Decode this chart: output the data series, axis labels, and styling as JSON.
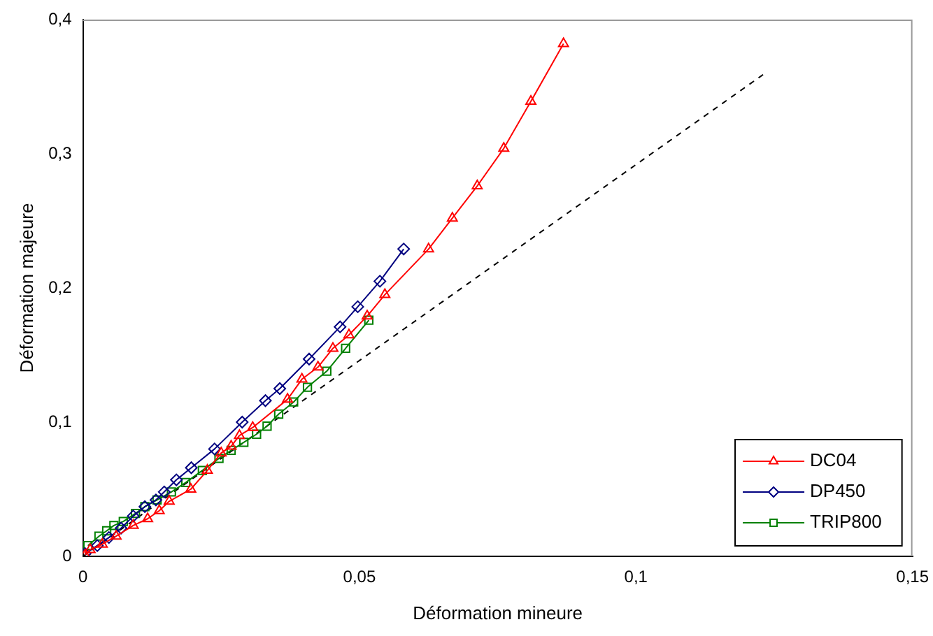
{
  "chart_data": {
    "type": "line",
    "xlabel": "Déformation mineure",
    "ylabel": "Déformation majeure",
    "xlim": [
      0,
      0.15
    ],
    "xticks": [
      0,
      {
        "value": 0.05,
        "label": "0,05"
      },
      {
        "value": 0.1,
        "label": "0,1"
      },
      {
        "value": 0.15,
        "label": "0,15"
      }
    ],
    "ylim": [
      0,
      0.4
    ],
    "yticks": [
      0,
      {
        "value": 0.1,
        "label": "0,1"
      },
      {
        "value": 0.2,
        "label": "0,2"
      },
      {
        "value": 0.3,
        "label": "0,3"
      },
      {
        "value": 0.4,
        "label": "0,4"
      }
    ],
    "grid": false,
    "legend": "bottom right",
    "series": [
      {
        "name": "DC04",
        "color": "#ff0000",
        "marker": "triangle",
        "x": [
          0.0004,
          0.0013,
          0.0035,
          0.006,
          0.0091,
          0.0117,
          0.0138,
          0.0156,
          0.0195,
          0.0225,
          0.025,
          0.0268,
          0.0283,
          0.0307,
          0.037,
          0.0396,
          0.0425,
          0.0452,
          0.0481,
          0.0514,
          0.0546,
          0.0625,
          0.0668,
          0.0713,
          0.0761,
          0.081,
          0.0869
        ],
        "values": [
          0.001,
          0.005,
          0.009,
          0.015,
          0.023,
          0.028,
          0.034,
          0.041,
          0.05,
          0.064,
          0.077,
          0.082,
          0.09,
          0.096,
          0.117,
          0.132,
          0.141,
          0.155,
          0.165,
          0.179,
          0.195,
          0.229,
          0.252,
          0.276,
          0.304,
          0.339,
          0.382
        ]
      },
      {
        "name": "DP450",
        "color": "#000080",
        "marker": "diamond",
        "x": [
          0.0004,
          0.0026,
          0.0047,
          0.0069,
          0.0091,
          0.0112,
          0.0132,
          0.0147,
          0.0169,
          0.0196,
          0.0238,
          0.0288,
          0.033,
          0.0356,
          0.0409,
          0.0465,
          0.0497,
          0.0537,
          0.058
        ],
        "values": [
          0.002,
          0.008,
          0.014,
          0.021,
          0.03,
          0.037,
          0.042,
          0.048,
          0.057,
          0.066,
          0.08,
          0.1,
          0.116,
          0.125,
          0.147,
          0.171,
          0.186,
          0.205,
          0.229
        ]
      },
      {
        "name": "TRIP800",
        "color": "#008000",
        "marker": "square",
        "x": [
          0.0009,
          0.0029,
          0.0043,
          0.0056,
          0.0073,
          0.0095,
          0.0112,
          0.0134,
          0.016,
          0.0186,
          0.0216,
          0.0246,
          0.0268,
          0.0291,
          0.0314,
          0.0333,
          0.0354,
          0.0381,
          0.0406,
          0.0441,
          0.0475,
          0.0517
        ],
        "values": [
          0.008,
          0.015,
          0.019,
          0.023,
          0.026,
          0.032,
          0.037,
          0.042,
          0.048,
          0.055,
          0.064,
          0.073,
          0.079,
          0.085,
          0.091,
          0.097,
          0.106,
          0.115,
          0.126,
          0.138,
          0.155,
          0.176
        ]
      },
      {
        "color": "#000000",
        "marker": "none",
        "line_style": "dashed",
        "x": [
          0,
          0.123
        ],
        "values": [
          0,
          0.359
        ]
      }
    ]
  }
}
